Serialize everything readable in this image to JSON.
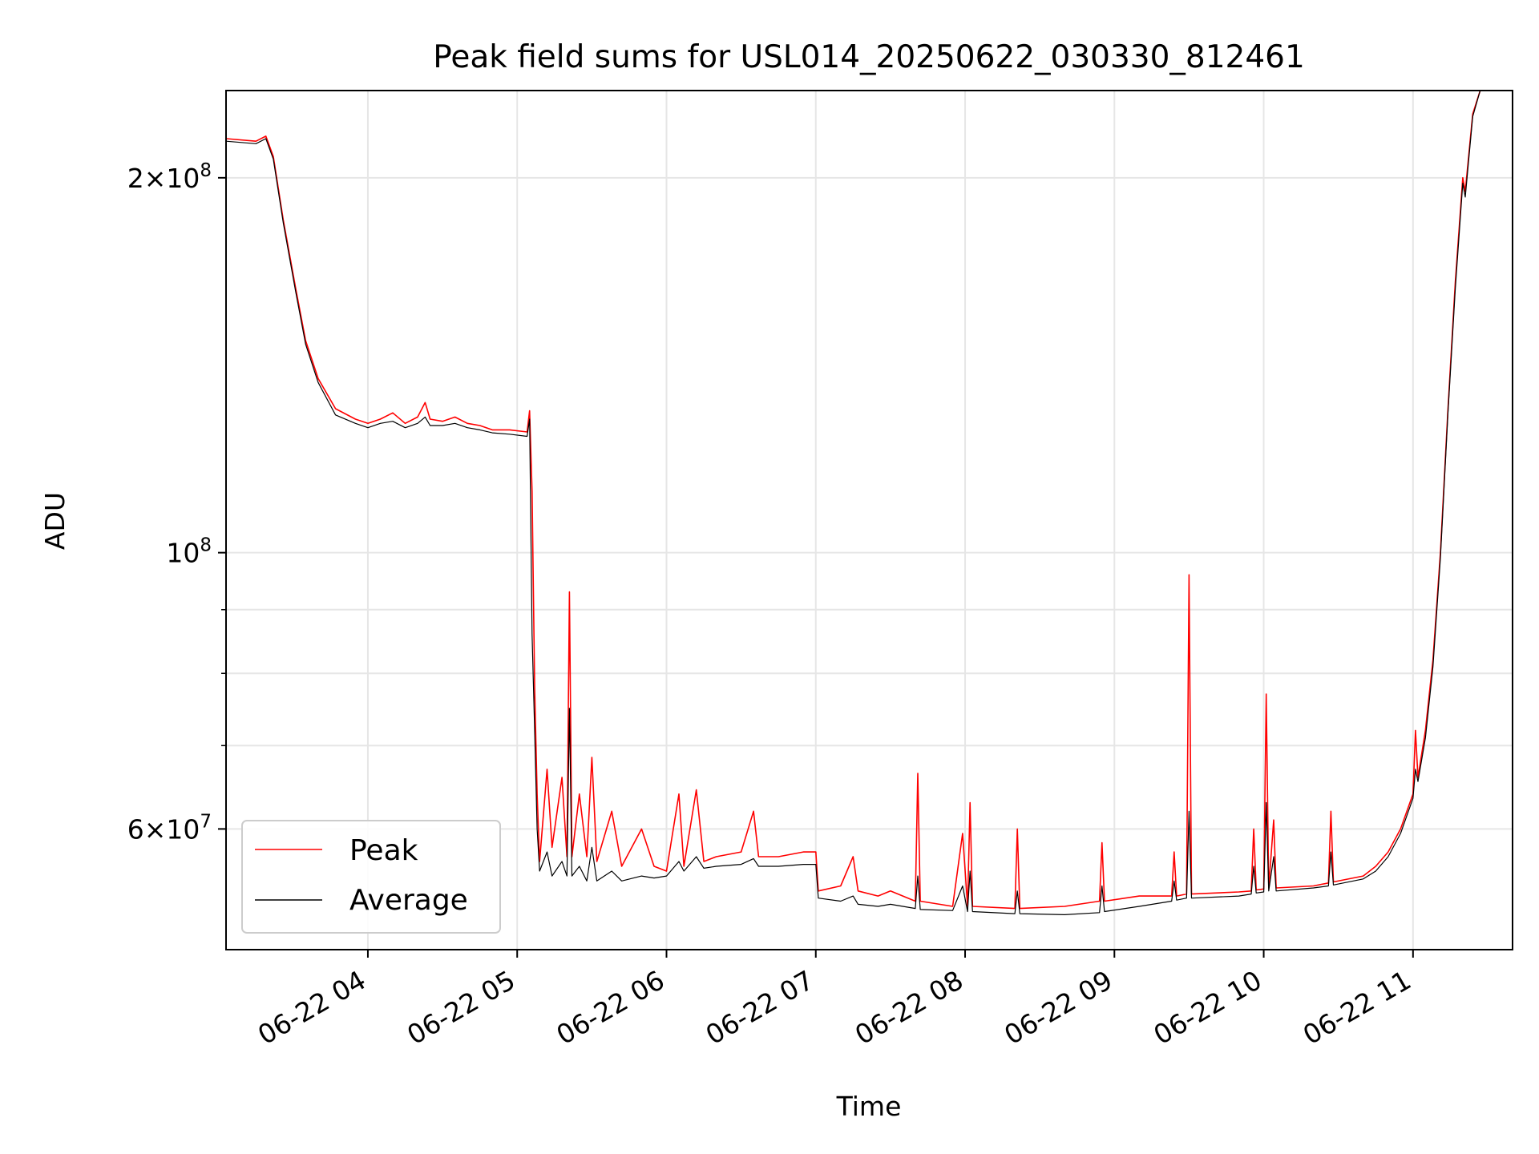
{
  "chart_data": {
    "type": "line",
    "title": "Peak field sums for USL014_20250622_030330_812461",
    "xlabel": "Time",
    "ylabel": "ADU",
    "x_scale": "time",
    "y_scale": "log",
    "xlim": [
      "2025-06-22 03:03",
      "2025-06-22 11:40"
    ],
    "ylim": [
      48000000,
      235000000
    ],
    "grid": true,
    "legend_position": "lower-left",
    "x_ticks": [
      {
        "value": "2025-06-22 04:00",
        "label": "06-22 04"
      },
      {
        "value": "2025-06-22 05:00",
        "label": "06-22 05"
      },
      {
        "value": "2025-06-22 06:00",
        "label": "06-22 06"
      },
      {
        "value": "2025-06-22 07:00",
        "label": "06-22 07"
      },
      {
        "value": "2025-06-22 08:00",
        "label": "06-22 08"
      },
      {
        "value": "2025-06-22 09:00",
        "label": "06-22 09"
      },
      {
        "value": "2025-06-22 10:00",
        "label": "06-22 10"
      },
      {
        "value": "2025-06-22 11:00",
        "label": "06-22 11"
      }
    ],
    "y_major_ticks": [
      {
        "value": 200000000,
        "mantissa": "2",
        "exponent": "8"
      },
      {
        "value": 100000000,
        "mantissa": "",
        "exponent": "8"
      },
      {
        "value": 60000000,
        "mantissa": "6",
        "exponent": "7"
      }
    ],
    "y_minor_ticks": [
      70000000,
      80000000,
      90000000
    ],
    "series": [
      {
        "name": "Peak",
        "color": "#ff0000",
        "points": [
          [
            "2025-06-22 03:03",
            215000000
          ],
          [
            "2025-06-22 03:15",
            214000000
          ],
          [
            "2025-06-22 03:19",
            216000000
          ],
          [
            "2025-06-22 03:22",
            208000000
          ],
          [
            "2025-06-22 03:26",
            185000000
          ],
          [
            "2025-06-22 03:31",
            163000000
          ],
          [
            "2025-06-22 03:35",
            148000000
          ],
          [
            "2025-06-22 03:40",
            138000000
          ],
          [
            "2025-06-22 03:47",
            130500000
          ],
          [
            "2025-06-22 03:55",
            128000000
          ],
          [
            "2025-06-22 04:00",
            127000000
          ],
          [
            "2025-06-22 04:05",
            128000000
          ],
          [
            "2025-06-22 04:10",
            129500000
          ],
          [
            "2025-06-22 04:15",
            127000000
          ],
          [
            "2025-06-22 04:20",
            128500000
          ],
          [
            "2025-06-22 04:23",
            132000000
          ],
          [
            "2025-06-22 04:25",
            128000000
          ],
          [
            "2025-06-22 04:30",
            127500000
          ],
          [
            "2025-06-22 04:35",
            128500000
          ],
          [
            "2025-06-22 04:40",
            127000000
          ],
          [
            "2025-06-22 04:45",
            126500000
          ],
          [
            "2025-06-22 04:50",
            125500000
          ],
          [
            "2025-06-22 04:57",
            125500000
          ],
          [
            "2025-06-22 05:04",
            125000000
          ],
          [
            "2025-06-22 05:05",
            130000000
          ],
          [
            "2025-06-22 05:06",
            112000000
          ],
          [
            "2025-06-22 05:07",
            78000000
          ],
          [
            "2025-06-22 05:08",
            64000000
          ],
          [
            "2025-06-22 05:09",
            56500000
          ],
          [
            "2025-06-22 05:12",
            67000000
          ],
          [
            "2025-06-22 05:14",
            58000000
          ],
          [
            "2025-06-22 05:18",
            66000000
          ],
          [
            "2025-06-22 05:20",
            57000000
          ],
          [
            "2025-06-22 05:21",
            93000000
          ],
          [
            "2025-06-22 05:22",
            57000000
          ],
          [
            "2025-06-22 05:25",
            64000000
          ],
          [
            "2025-06-22 05:28",
            57000000
          ],
          [
            "2025-06-22 05:30",
            68500000
          ],
          [
            "2025-06-22 05:32",
            56500000
          ],
          [
            "2025-06-22 05:38",
            62000000
          ],
          [
            "2025-06-22 05:42",
            56000000
          ],
          [
            "2025-06-22 05:50",
            60000000
          ],
          [
            "2025-06-22 05:55",
            56000000
          ],
          [
            "2025-06-22 06:00",
            55500000
          ],
          [
            "2025-06-22 06:05",
            64000000
          ],
          [
            "2025-06-22 06:07",
            56000000
          ],
          [
            "2025-06-22 06:12",
            64500000
          ],
          [
            "2025-06-22 06:15",
            56500000
          ],
          [
            "2025-06-22 06:20",
            57000000
          ],
          [
            "2025-06-22 06:30",
            57500000
          ],
          [
            "2025-06-22 06:35",
            62000000
          ],
          [
            "2025-06-22 06:37",
            57000000
          ],
          [
            "2025-06-22 06:45",
            57000000
          ],
          [
            "2025-06-22 06:55",
            57500000
          ],
          [
            "2025-06-22 07:00",
            57500000
          ],
          [
            "2025-06-22 07:01",
            53500000
          ],
          [
            "2025-06-22 07:10",
            54000000
          ],
          [
            "2025-06-22 07:15",
            57000000
          ],
          [
            "2025-06-22 07:17",
            53500000
          ],
          [
            "2025-06-22 07:25",
            53000000
          ],
          [
            "2025-06-22 07:30",
            53500000
          ],
          [
            "2025-06-22 07:40",
            52500000
          ],
          [
            "2025-06-22 07:41",
            66500000
          ],
          [
            "2025-06-22 07:42",
            52500000
          ],
          [
            "2025-06-22 07:55",
            52000000
          ],
          [
            "2025-06-22 07:59",
            59500000
          ],
          [
            "2025-06-22 08:01",
            52000000
          ],
          [
            "2025-06-22 08:02",
            63000000
          ],
          [
            "2025-06-22 08:03",
            52000000
          ],
          [
            "2025-06-22 08:20",
            51800000
          ],
          [
            "2025-06-22 08:21",
            60000000
          ],
          [
            "2025-06-22 08:22",
            51800000
          ],
          [
            "2025-06-22 08:40",
            52000000
          ],
          [
            "2025-06-22 08:54",
            52500000
          ],
          [
            "2025-06-22 08:55",
            58500000
          ],
          [
            "2025-06-22 08:56",
            52500000
          ],
          [
            "2025-06-22 09:10",
            53000000
          ],
          [
            "2025-06-22 09:23",
            53000000
          ],
          [
            "2025-06-22 09:24",
            57500000
          ],
          [
            "2025-06-22 09:25",
            53000000
          ],
          [
            "2025-06-22 09:29",
            53200000
          ],
          [
            "2025-06-22 09:30",
            96000000
          ],
          [
            "2025-06-22 09:31",
            53200000
          ],
          [
            "2025-06-22 09:50",
            53400000
          ],
          [
            "2025-06-22 09:55",
            53500000
          ],
          [
            "2025-06-22 09:56",
            60000000
          ],
          [
            "2025-06-22 09:57",
            53600000
          ],
          [
            "2025-06-22 10:00",
            53700000
          ],
          [
            "2025-06-22 10:01",
            77000000
          ],
          [
            "2025-06-22 10:02",
            53800000
          ],
          [
            "2025-06-22 10:04",
            61000000
          ],
          [
            "2025-06-22 10:05",
            53800000
          ],
          [
            "2025-06-22 10:20",
            54000000
          ],
          [
            "2025-06-22 10:26",
            54300000
          ],
          [
            "2025-06-22 10:27",
            62000000
          ],
          [
            "2025-06-22 10:28",
            54400000
          ],
          [
            "2025-06-22 10:40",
            55000000
          ],
          [
            "2025-06-22 10:45",
            56000000
          ],
          [
            "2025-06-22 10:50",
            57500000
          ],
          [
            "2025-06-22 10:55",
            60000000
          ],
          [
            "2025-06-22 11:00",
            64000000
          ],
          [
            "2025-06-22 11:01",
            72000000
          ],
          [
            "2025-06-22 11:02",
            66000000
          ],
          [
            "2025-06-22 11:05",
            72000000
          ],
          [
            "2025-06-22 11:08",
            82000000
          ],
          [
            "2025-06-22 11:11",
            100000000
          ],
          [
            "2025-06-22 11:14",
            130000000
          ],
          [
            "2025-06-22 11:17",
            165000000
          ],
          [
            "2025-06-22 11:20",
            200000000
          ],
          [
            "2025-06-22 11:21",
            195000000
          ],
          [
            "2025-06-22 11:24",
            225000000
          ],
          [
            "2025-06-22 11:27",
            235000000
          ],
          [
            "2025-06-22 11:40",
            235000000
          ]
        ]
      },
      {
        "name": "Average",
        "color": "#000000",
        "points": [
          [
            "2025-06-22 03:03",
            214000000
          ],
          [
            "2025-06-22 03:15",
            213000000
          ],
          [
            "2025-06-22 03:19",
            215000000
          ],
          [
            "2025-06-22 03:22",
            207000000
          ],
          [
            "2025-06-22 03:26",
            184000000
          ],
          [
            "2025-06-22 03:31",
            162000000
          ],
          [
            "2025-06-22 03:35",
            147000000
          ],
          [
            "2025-06-22 03:40",
            137000000
          ],
          [
            "2025-06-22 03:47",
            129000000
          ],
          [
            "2025-06-22 03:55",
            127000000
          ],
          [
            "2025-06-22 04:00",
            126000000
          ],
          [
            "2025-06-22 04:05",
            127000000
          ],
          [
            "2025-06-22 04:10",
            127500000
          ],
          [
            "2025-06-22 04:15",
            126000000
          ],
          [
            "2025-06-22 04:20",
            127000000
          ],
          [
            "2025-06-22 04:23",
            128500000
          ],
          [
            "2025-06-22 04:25",
            126500000
          ],
          [
            "2025-06-22 04:30",
            126500000
          ],
          [
            "2025-06-22 04:35",
            127000000
          ],
          [
            "2025-06-22 04:40",
            126000000
          ],
          [
            "2025-06-22 04:45",
            125500000
          ],
          [
            "2025-06-22 04:50",
            124800000
          ],
          [
            "2025-06-22 04:57",
            124500000
          ],
          [
            "2025-06-22 05:04",
            124000000
          ],
          [
            "2025-06-22 05:05",
            128000000
          ],
          [
            "2025-06-22 05:06",
            86000000
          ],
          [
            "2025-06-22 05:07",
            72000000
          ],
          [
            "2025-06-22 05:08",
            60000000
          ],
          [
            "2025-06-22 05:09",
            55500000
          ],
          [
            "2025-06-22 05:12",
            57500000
          ],
          [
            "2025-06-22 05:14",
            55000000
          ],
          [
            "2025-06-22 05:18",
            56500000
          ],
          [
            "2025-06-22 05:20",
            55000000
          ],
          [
            "2025-06-22 05:21",
            75000000
          ],
          [
            "2025-06-22 05:22",
            55000000
          ],
          [
            "2025-06-22 05:25",
            56000000
          ],
          [
            "2025-06-22 05:28",
            54500000
          ],
          [
            "2025-06-22 05:30",
            58000000
          ],
          [
            "2025-06-22 05:32",
            54500000
          ],
          [
            "2025-06-22 05:38",
            55500000
          ],
          [
            "2025-06-22 05:42",
            54500000
          ],
          [
            "2025-06-22 05:50",
            55000000
          ],
          [
            "2025-06-22 05:55",
            54800000
          ],
          [
            "2025-06-22 06:00",
            55000000
          ],
          [
            "2025-06-22 06:05",
            56500000
          ],
          [
            "2025-06-22 06:07",
            55500000
          ],
          [
            "2025-06-22 06:12",
            57000000
          ],
          [
            "2025-06-22 06:15",
            55800000
          ],
          [
            "2025-06-22 06:20",
            56000000
          ],
          [
            "2025-06-22 06:30",
            56200000
          ],
          [
            "2025-06-22 06:35",
            56800000
          ],
          [
            "2025-06-22 06:37",
            56000000
          ],
          [
            "2025-06-22 06:45",
            56000000
          ],
          [
            "2025-06-22 06:55",
            56200000
          ],
          [
            "2025-06-22 07:00",
            56200000
          ],
          [
            "2025-06-22 07:01",
            52800000
          ],
          [
            "2025-06-22 07:10",
            52500000
          ],
          [
            "2025-06-22 07:15",
            53000000
          ],
          [
            "2025-06-22 07:17",
            52200000
          ],
          [
            "2025-06-22 07:25",
            52000000
          ],
          [
            "2025-06-22 07:30",
            52200000
          ],
          [
            "2025-06-22 07:40",
            51800000
          ],
          [
            "2025-06-22 07:41",
            55000000
          ],
          [
            "2025-06-22 07:42",
            51700000
          ],
          [
            "2025-06-22 07:55",
            51600000
          ],
          [
            "2025-06-22 07:59",
            54000000
          ],
          [
            "2025-06-22 08:01",
            51500000
          ],
          [
            "2025-06-22 08:02",
            55500000
          ],
          [
            "2025-06-22 08:03",
            51500000
          ],
          [
            "2025-06-22 08:20",
            51300000
          ],
          [
            "2025-06-22 08:21",
            53500000
          ],
          [
            "2025-06-22 08:22",
            51300000
          ],
          [
            "2025-06-22 08:40",
            51200000
          ],
          [
            "2025-06-22 08:54",
            51400000
          ],
          [
            "2025-06-22 08:55",
            54000000
          ],
          [
            "2025-06-22 08:56",
            51500000
          ],
          [
            "2025-06-22 09:10",
            52000000
          ],
          [
            "2025-06-22 09:23",
            52500000
          ],
          [
            "2025-06-22 09:24",
            54500000
          ],
          [
            "2025-06-22 09:25",
            52600000
          ],
          [
            "2025-06-22 09:29",
            52800000
          ],
          [
            "2025-06-22 09:30",
            62000000
          ],
          [
            "2025-06-22 09:31",
            52800000
          ],
          [
            "2025-06-22 09:50",
            53000000
          ],
          [
            "2025-06-22 09:55",
            53200000
          ],
          [
            "2025-06-22 09:56",
            56000000
          ],
          [
            "2025-06-22 09:57",
            53300000
          ],
          [
            "2025-06-22 10:00",
            53400000
          ],
          [
            "2025-06-22 10:01",
            63000000
          ],
          [
            "2025-06-22 10:02",
            53500000
          ],
          [
            "2025-06-22 10:04",
            57000000
          ],
          [
            "2025-06-22 10:05",
            53500000
          ],
          [
            "2025-06-22 10:20",
            53800000
          ],
          [
            "2025-06-22 10:26",
            54000000
          ],
          [
            "2025-06-22 10:27",
            57500000
          ],
          [
            "2025-06-22 10:28",
            54100000
          ],
          [
            "2025-06-22 10:40",
            54700000
          ],
          [
            "2025-06-22 10:45",
            55500000
          ],
          [
            "2025-06-22 10:50",
            57000000
          ],
          [
            "2025-06-22 10:55",
            59500000
          ],
          [
            "2025-06-22 11:00",
            63500000
          ],
          [
            "2025-06-22 11:01",
            67000000
          ],
          [
            "2025-06-22 11:02",
            65500000
          ],
          [
            "2025-06-22 11:05",
            71000000
          ],
          [
            "2025-06-22 11:08",
            81000000
          ],
          [
            "2025-06-22 11:11",
            99000000
          ],
          [
            "2025-06-22 11:14",
            129000000
          ],
          [
            "2025-06-22 11:17",
            163000000
          ],
          [
            "2025-06-22 11:20",
            198000000
          ],
          [
            "2025-06-22 11:21",
            193000000
          ],
          [
            "2025-06-22 11:24",
            224000000
          ],
          [
            "2025-06-22 11:27",
            235000000
          ],
          [
            "2025-06-22 11:40",
            235000000
          ]
        ]
      }
    ]
  }
}
